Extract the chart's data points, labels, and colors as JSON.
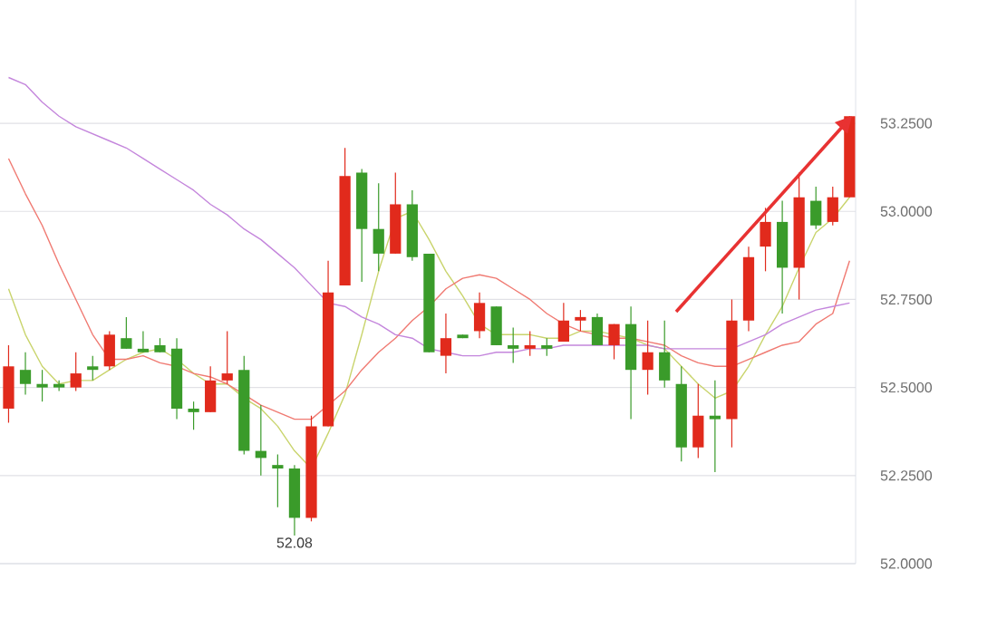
{
  "chart_data": {
    "type": "candlestick",
    "categories": [
      null,
      null,
      null,
      null,
      null,
      null,
      null,
      null,
      null,
      null,
      null,
      null,
      null,
      null,
      null,
      null,
      null,
      null,
      null,
      null,
      null,
      null,
      null,
      null,
      null,
      null,
      null,
      null,
      null,
      null,
      null,
      null,
      null,
      null,
      null,
      null,
      null,
      null,
      null,
      null,
      null,
      null,
      null,
      null,
      null,
      null,
      null,
      null,
      null,
      null,
      null
    ],
    "ohlc": [
      [
        52.44,
        52.62,
        52.4,
        52.56
      ],
      [
        52.55,
        52.6,
        52.48,
        52.51
      ],
      [
        52.51,
        52.55,
        52.46,
        52.5
      ],
      [
        52.51,
        52.52,
        52.49,
        52.5
      ],
      [
        52.5,
        52.6,
        52.49,
        52.54
      ],
      [
        52.56,
        52.59,
        52.52,
        52.55
      ],
      [
        52.56,
        52.66,
        52.55,
        52.65
      ],
      [
        52.64,
        52.7,
        52.61,
        52.61
      ],
      [
        52.61,
        52.66,
        52.6,
        52.6
      ],
      [
        52.62,
        52.64,
        52.6,
        52.6
      ],
      [
        52.61,
        52.64,
        52.41,
        52.44
      ],
      [
        52.44,
        52.46,
        52.38,
        52.43
      ],
      [
        52.43,
        52.56,
        52.43,
        52.52
      ],
      [
        52.52,
        52.66,
        52.51,
        52.54
      ],
      [
        52.55,
        52.59,
        52.31,
        52.32
      ],
      [
        52.32,
        52.45,
        52.25,
        52.3
      ],
      [
        52.28,
        52.31,
        52.16,
        52.27
      ],
      [
        52.27,
        52.28,
        52.08,
        52.13
      ],
      [
        52.13,
        52.42,
        52.12,
        52.39
      ],
      [
        52.39,
        52.86,
        52.39,
        52.77
      ],
      [
        52.79,
        53.18,
        52.79,
        53.1
      ],
      [
        53.11,
        53.12,
        52.8,
        52.95
      ],
      [
        52.95,
        53.08,
        52.83,
        52.88
      ],
      [
        52.88,
        53.11,
        52.88,
        53.02
      ],
      [
        53.02,
        53.06,
        52.86,
        52.87
      ],
      [
        52.88,
        52.88,
        52.6,
        52.6
      ],
      [
        52.59,
        52.71,
        52.54,
        52.64
      ],
      [
        52.65,
        52.65,
        52.64,
        52.64
      ],
      [
        52.66,
        52.77,
        52.64,
        52.74
      ],
      [
        52.73,
        52.73,
        52.62,
        52.62
      ],
      [
        52.62,
        52.67,
        52.57,
        52.61
      ],
      [
        52.61,
        52.66,
        52.59,
        52.62
      ],
      [
        52.62,
        52.64,
        52.59,
        52.61
      ],
      [
        52.63,
        52.74,
        52.63,
        52.69
      ],
      [
        52.69,
        52.72,
        52.66,
        52.7
      ],
      [
        52.7,
        52.71,
        52.62,
        52.62
      ],
      [
        52.62,
        52.68,
        52.58,
        52.68
      ],
      [
        52.68,
        52.73,
        52.41,
        52.55
      ],
      [
        52.55,
        52.69,
        52.48,
        52.6
      ],
      [
        52.6,
        52.69,
        52.5,
        52.52
      ],
      [
        52.51,
        52.56,
        52.29,
        52.33
      ],
      [
        52.33,
        52.51,
        52.3,
        52.42
      ],
      [
        52.42,
        52.52,
        52.26,
        52.41
      ],
      [
        52.41,
        52.75,
        52.33,
        52.69
      ],
      [
        52.69,
        52.9,
        52.66,
        52.87
      ],
      [
        52.9,
        53.01,
        52.83,
        52.97
      ],
      [
        52.97,
        53.03,
        52.71,
        52.84
      ],
      [
        52.84,
        53.11,
        52.75,
        53.04
      ],
      [
        53.03,
        53.07,
        52.95,
        52.96
      ],
      [
        52.97,
        53.07,
        52.96,
        53.04
      ],
      [
        53.04,
        53.27,
        53.04,
        53.27
      ]
    ],
    "colors": [
      "#e12a1c",
      "#3a9b2a",
      "#3a9b2a",
      "#3a9b2a",
      "#e12a1c",
      "#3a9b2a",
      "#e12a1c",
      "#3a9b2a",
      "#3a9b2a",
      "#3a9b2a",
      "#3a9b2a",
      "#3a9b2a",
      "#e12a1c",
      "#e12a1c",
      "#3a9b2a",
      "#3a9b2a",
      "#3a9b2a",
      "#3a9b2a",
      "#e12a1c",
      "#e12a1c",
      "#e12a1c",
      "#3a9b2a",
      "#3a9b2a",
      "#e12a1c",
      "#3a9b2a",
      "#3a9b2a",
      "#e12a1c",
      "#3a9b2a",
      "#e12a1c",
      "#3a9b2a",
      "#3a9b2a",
      "#e12a1c",
      "#3a9b2a",
      "#e12a1c",
      "#e12a1c",
      "#3a9b2a",
      "#e12a1c",
      "#3a9b2a",
      "#e12a1c",
      "#3a9b2a",
      "#3a9b2a",
      "#e12a1c",
      "#3a9b2a",
      "#e12a1c",
      "#e12a1c",
      "#e12a1c",
      "#3a9b2a",
      "#e12a1c",
      "#3a9b2a",
      "#e12a1c",
      "#e12a1c"
    ],
    "series": [
      {
        "type": "line",
        "color": "#c9d46c",
        "values": [
          52.78,
          52.65,
          52.56,
          52.51,
          52.52,
          52.52,
          52.55,
          52.58,
          52.6,
          52.61,
          52.58,
          52.54,
          52.51,
          52.51,
          52.47,
          52.44,
          52.39,
          52.32,
          52.27,
          52.37,
          52.48,
          52.65,
          52.83,
          52.98,
          53.0,
          52.92,
          52.83,
          52.76,
          52.68,
          52.65,
          52.65,
          52.65,
          52.64,
          52.64,
          52.66,
          52.66,
          52.65,
          52.64,
          52.62,
          52.61,
          52.56,
          52.51,
          52.47,
          52.49,
          52.56,
          52.65,
          52.73,
          52.84,
          52.94,
          52.98,
          53.04
        ]
      },
      {
        "type": "line",
        "color": "#f07a72",
        "values": [
          53.15,
          53.05,
          52.96,
          52.85,
          52.75,
          52.65,
          52.58,
          52.58,
          52.59,
          52.57,
          52.56,
          52.54,
          52.53,
          52.51,
          52.48,
          52.45,
          52.43,
          52.41,
          52.41,
          52.45,
          52.49,
          52.55,
          52.6,
          52.64,
          52.69,
          52.73,
          52.78,
          52.81,
          52.82,
          52.81,
          52.78,
          52.75,
          52.71,
          52.68,
          52.66,
          52.65,
          52.64,
          52.64,
          52.63,
          52.62,
          52.59,
          52.57,
          52.56,
          52.56,
          52.58,
          52.6,
          52.62,
          52.63,
          52.68,
          52.71,
          52.86
        ]
      },
      {
        "type": "line",
        "color": "#c486dc",
        "values": [
          53.38,
          53.36,
          53.31,
          53.27,
          53.24,
          53.22,
          53.2,
          53.18,
          53.15,
          53.12,
          53.09,
          53.06,
          53.02,
          52.99,
          52.95,
          52.92,
          52.88,
          52.84,
          52.79,
          52.74,
          52.73,
          52.7,
          52.68,
          52.65,
          52.64,
          52.61,
          52.6,
          52.59,
          52.59,
          52.6,
          52.6,
          52.61,
          52.61,
          52.62,
          52.62,
          52.62,
          52.62,
          52.62,
          52.62,
          52.61,
          52.61,
          52.61,
          52.61,
          52.61,
          52.63,
          52.65,
          52.68,
          52.7,
          52.72,
          52.73,
          52.74
        ]
      }
    ],
    "ylim": [
      52.0,
      53.6
    ],
    "yticks": [
      {
        "value": 52.0,
        "label": "52.0000"
      },
      {
        "value": 52.25,
        "label": "52.2500"
      },
      {
        "value": 52.5,
        "label": "52.5000"
      },
      {
        "value": 52.75,
        "label": "52.7500"
      },
      {
        "value": 53.0,
        "label": "53.0000"
      },
      {
        "value": 53.25,
        "label": "53.2500"
      }
    ],
    "grid": "y",
    "tick_labels": "y",
    "annotations": [
      {
        "text": "52.08",
        "y": 52.08
      }
    ]
  }
}
